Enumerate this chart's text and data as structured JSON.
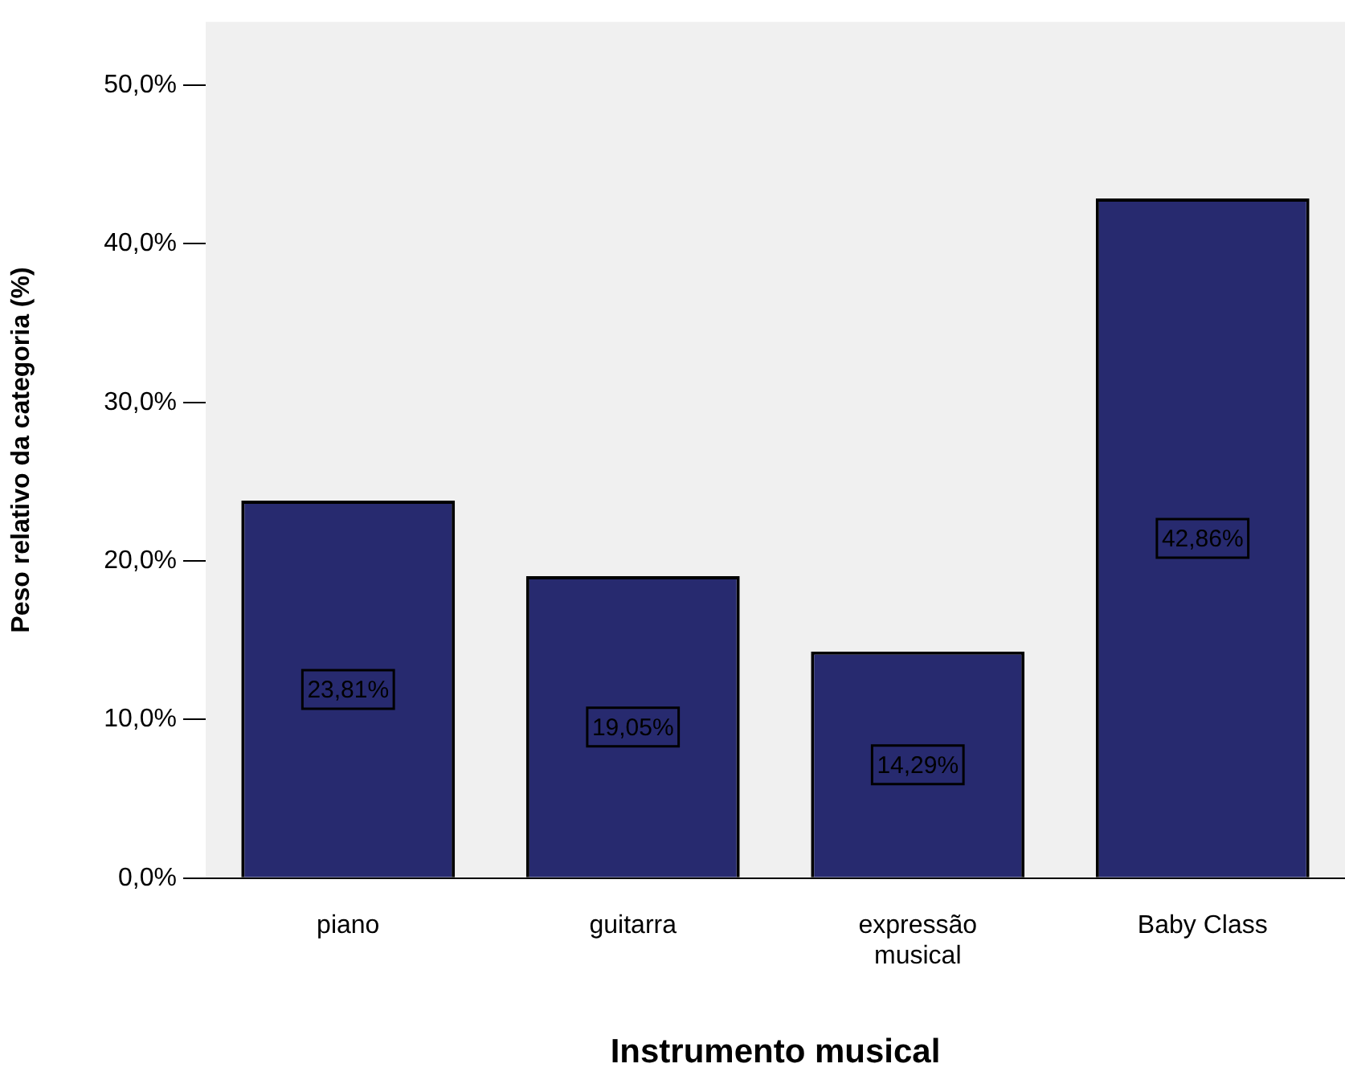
{
  "chart_data": {
    "type": "bar",
    "xlabel": "Instrumento musical",
    "ylabel": "Peso relativo da categoria (%)",
    "categories": [
      "piano",
      "guitarra",
      "expressão musical",
      "Baby Class"
    ],
    "values": [
      23.81,
      19.05,
      14.29,
      42.86
    ],
    "color": "#272a6f",
    "value_labels": [
      "23,81%",
      "19,05%",
      "14,29%",
      "42,86%"
    ],
    "ylim": [
      0,
      54
    ],
    "yticks": [
      {
        "value": 0,
        "label": "0,0%"
      },
      {
        "value": 10,
        "label": "10,0%"
      },
      {
        "value": 20,
        "label": "20,0%"
      },
      {
        "value": 30,
        "label": "30,0%"
      },
      {
        "value": 40,
        "label": "40,0%"
      },
      {
        "value": 50,
        "label": "50,0%"
      }
    ],
    "grid": false,
    "legend": false
  }
}
